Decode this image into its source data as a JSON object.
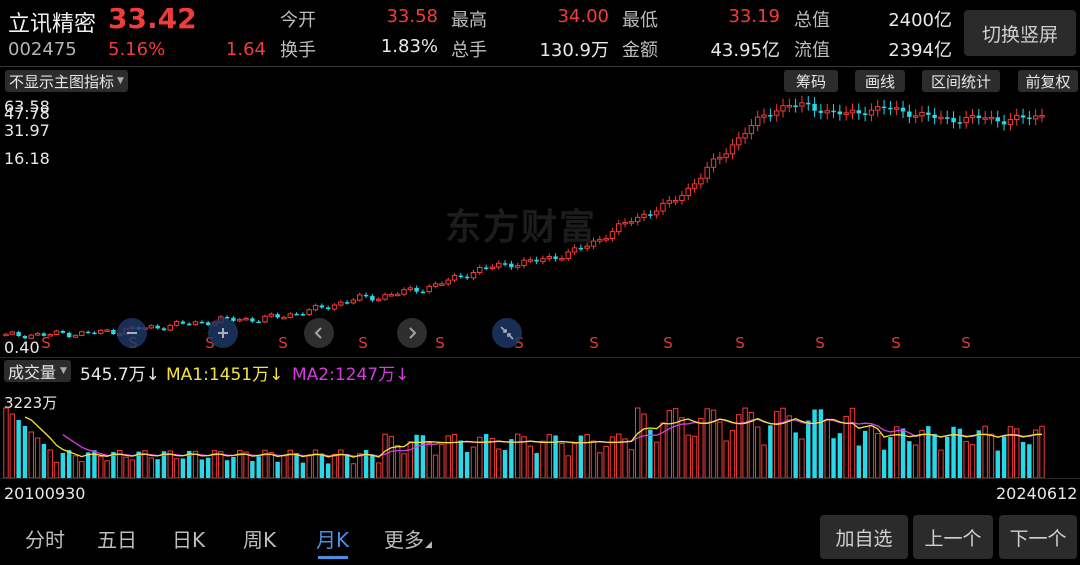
{
  "stock": {
    "name": "立讯精密",
    "code": "002475",
    "price": "33.42",
    "change_pct": "5.16%",
    "change_amt": "1.64"
  },
  "quote": [
    {
      "label": "今开",
      "value": "33.58",
      "color": "red"
    },
    {
      "label": "最高",
      "value": "34.00",
      "color": "red"
    },
    {
      "label": "最低",
      "value": "33.19",
      "color": "red"
    },
    {
      "label": "总值",
      "value": "2400亿",
      "color": "white"
    },
    {
      "label": "换手",
      "value": "1.83%",
      "color": "white"
    },
    {
      "label": "总手",
      "value": "130.9万",
      "color": "white"
    },
    {
      "label": "金额",
      "value": "43.95亿",
      "color": "white"
    },
    {
      "label": "流值",
      "value": "2394亿",
      "color": "white"
    }
  ],
  "toolbar": {
    "switch_label": "切换竖屏",
    "indicator_label": "不显示主图指标"
  },
  "chips": [
    "筹码",
    "画线",
    "区间统计",
    "前复权"
  ],
  "price_axis": {
    "top_a": "63.58",
    "top_b": "47.78",
    "mid1": "31.97",
    "mid2": "16.18",
    "bottom": "0.40"
  },
  "watermark": "东方财富",
  "volume_panel": {
    "selector": "成交量",
    "vol": "545.7万",
    "ma1": "MA1:1451万",
    "ma2": "MA2:1247万",
    "arrow": "↓",
    "axis_top": "3223万"
  },
  "signal_letter": "S",
  "dates": {
    "start": "20100930",
    "end": "20240612"
  },
  "tabs": [
    "分时",
    "五日",
    "日K",
    "周K",
    "月K",
    "更多"
  ],
  "active_tab": "月K",
  "bottom_buttons": [
    "加自选",
    "上一个",
    "下一个"
  ],
  "colors": {
    "up": "#f23b3b",
    "down": "#27d8e8",
    "ma1": "#f5e33d",
    "ma2": "#d63be0",
    "active": "#4a90e2"
  },
  "chart_data": {
    "type": "candlestick",
    "period": "monthly",
    "x_range": [
      "20100930",
      "20240612"
    ],
    "y_ticks": [
      63.58,
      47.78,
      31.97,
      16.18,
      0.4
    ],
    "approx_close": [
      0.9,
      1.1,
      1.0,
      1.3,
      1.2,
      1.5,
      1.7,
      2.0,
      2.3,
      2.6,
      2.9,
      3.2,
      3.4,
      3.3,
      3.8,
      4.3,
      4.9,
      5.7,
      6.4,
      6.6,
      7.2,
      7.7,
      8.4,
      9.4,
      10.5,
      11.2,
      11.6,
      11.9,
      12.5,
      13.3,
      14.6,
      16.3,
      18.0,
      19.2,
      20.5,
      22.8,
      25.9,
      28.6,
      31.6,
      33.8,
      35.0,
      34.8,
      34.0,
      33.6,
      34.1,
      34.6,
      33.9,
      33.4,
      32.9,
      32.8,
      33.2,
      32.6,
      33.0,
      33.42
    ],
    "volume_ticks": [
      "3223万"
    ]
  }
}
